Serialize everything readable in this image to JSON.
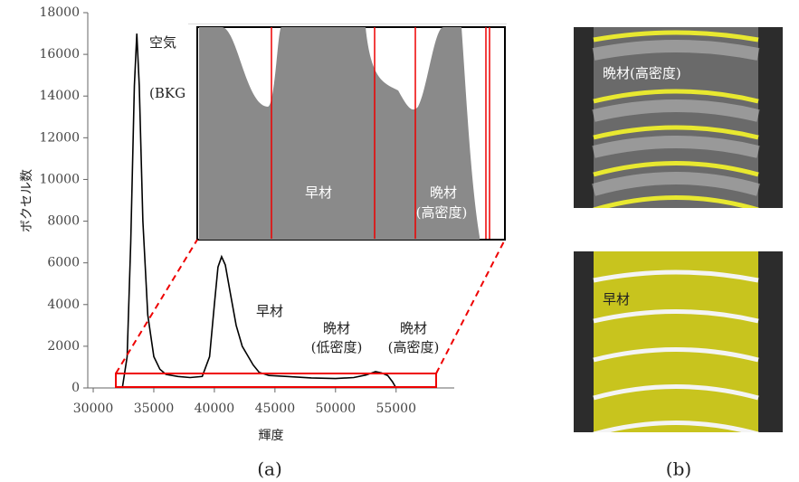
{
  "chart_data": {
    "type": "line",
    "color": "#000000",
    "x": [
      32400,
      32800,
      33100,
      33400,
      33600,
      33800,
      34100,
      34500,
      35000,
      35500,
      36000,
      37000,
      38000,
      39000,
      39600,
      40000,
      40300,
      40600,
      40900,
      41300,
      41800,
      42300,
      42800,
      43200,
      43700,
      44500,
      46000,
      48000,
      50000,
      51500,
      52500,
      53300,
      53800,
      54300,
      54700,
      55000
    ],
    "values": [
      0,
      1500,
      7000,
      14500,
      17000,
      14500,
      8000,
      3500,
      1500,
      900,
      650,
      550,
      500,
      550,
      1500,
      4000,
      5800,
      6300,
      5900,
      4600,
      3000,
      2000,
      1500,
      1100,
      750,
      600,
      550,
      480,
      450,
      500,
      620,
      780,
      720,
      600,
      300,
      0
    ],
    "xlim": [
      29550,
      59800
    ],
    "ylim": [
      0,
      18000
    ],
    "xticks": [
      30000,
      35000,
      40000,
      45000,
      50000,
      55000
    ],
    "yticks": [
      0,
      2000,
      4000,
      6000,
      8000,
      10000,
      12000,
      14000,
      16000,
      18000
    ],
    "xlabel": "輝度",
    "ylabel": "ボクセル数",
    "annotations": [
      "空気",
      "(BKG",
      "早材",
      "晩材",
      "(低密度)",
      "晩材",
      "(高密度)"
    ],
    "inset_labels": [
      "早材",
      "晩材",
      "(高密度)"
    ],
    "caption": "(a)"
  },
  "panel_b": {
    "top_label": "晩材(高密度)",
    "bottom_label": "早材",
    "caption": "(b)"
  }
}
